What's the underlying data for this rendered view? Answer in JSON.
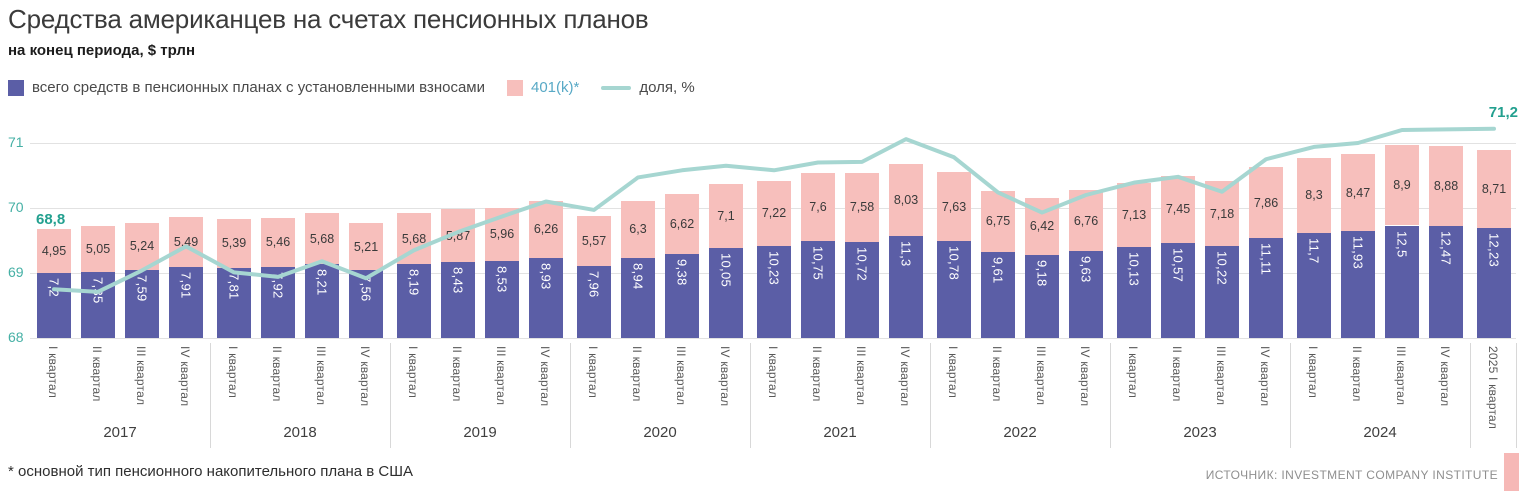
{
  "title": "Средства американцев на счетах пенсионных планов",
  "subtitle": "на конец периода, $ трлн",
  "legend": [
    {
      "label": "всего средств в пенсионных планах с установленными взносами"
    },
    {
      "label": "401(k)*"
    },
    {
      "label": "доля, %"
    }
  ],
  "line_labels": {
    "start": "68,8",
    "end": "71,2"
  },
  "footnote": "* основной тип пенсионного накопительного плана в США",
  "source": "ИСТОЧНИК: INVESTMENT COMPANY INSTITUTE",
  "y_axis": {
    "ticks": [
      "71",
      "70",
      "69",
      "68"
    ]
  },
  "colors": {
    "dc_bar": "#5b5ea6",
    "k401_bar": "#f7bfbc",
    "share_line": "#a6d6d1",
    "line_label": "#23a08f",
    "axis_label": "#45b0a5",
    "legend_401k_text": "#58a9c6",
    "brand_mark": "#f6b8b6"
  },
  "chart_data": {
    "type": "bar",
    "subtype": "stacked-bar-with-line-overlay",
    "title": "Средства американцев на счетах пенсионных планов",
    "unit": "$ трлн",
    "left_axis_range": [
      68,
      71.3
    ],
    "grid": true,
    "legend_position": "top",
    "categories": [
      "I квартал",
      "II квартал",
      "III квартал",
      "IV квартал",
      "I квартал",
      "II квартал",
      "III квартал",
      "IV квартал",
      "I квартал",
      "II квартал",
      "III квартал",
      "IV квартал",
      "I квартал",
      "II квартал",
      "III квартал",
      "IV квартал",
      "I квартал",
      "II квартал",
      "III квартал",
      "IV квартал",
      "I квартал",
      "II квартал",
      "III квартал",
      "IV квартал",
      "I квартал",
      "II квартал",
      "III квартал",
      "IV квартал",
      "I квартал",
      "II квартал",
      "III квартал",
      "IV квартал",
      "2025 I квартал"
    ],
    "year_groups": [
      "2017",
      "2018",
      "2019",
      "2020",
      "2021",
      "2022",
      "2023",
      "2024"
    ],
    "series": [
      {
        "name": "всего средств в пенсионных планах с установленными взносами",
        "role": "bar-bottom",
        "values": [
          7.2,
          7.35,
          7.59,
          7.91,
          7.81,
          7.92,
          8.21,
          7.56,
          8.19,
          8.43,
          8.53,
          8.93,
          7.96,
          8.94,
          9.38,
          10.05,
          10.23,
          10.75,
          10.72,
          11.3,
          10.78,
          9.61,
          9.18,
          9.63,
          10.13,
          10.57,
          10.22,
          11.11,
          11.7,
          11.93,
          12.5,
          12.47,
          12.23
        ]
      },
      {
        "name": "401(k)",
        "role": "bar-top",
        "values": [
          4.95,
          5.05,
          5.24,
          5.49,
          5.39,
          5.46,
          5.68,
          5.21,
          5.68,
          5.87,
          5.96,
          6.26,
          5.57,
          6.3,
          6.62,
          7.1,
          7.22,
          7.6,
          7.58,
          8.03,
          7.63,
          6.75,
          6.42,
          6.76,
          7.13,
          7.45,
          7.18,
          7.86,
          8.3,
          8.47,
          8.9,
          8.88,
          8.71
        ]
      },
      {
        "name": "доля, %",
        "role": "line",
        "values": [
          68.75,
          68.71,
          69.04,
          69.41,
          69.01,
          68.94,
          69.18,
          68.92,
          69.35,
          69.63,
          69.87,
          70.1,
          69.97,
          70.47,
          70.58,
          70.65,
          70.58,
          70.7,
          70.71,
          71.06,
          70.78,
          70.24,
          69.93,
          70.2,
          70.39,
          70.48,
          70.25,
          70.75,
          70.94,
          71.0,
          71.2,
          71.21,
          71.22
        ],
        "labeled_points": {
          "first": "68,8",
          "last": "71,2"
        }
      }
    ]
  }
}
